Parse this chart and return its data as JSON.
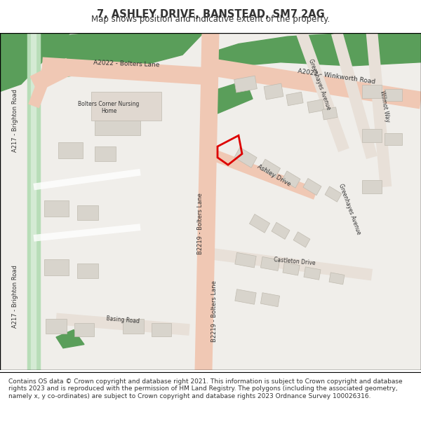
{
  "title": "7, ASHLEY DRIVE, BANSTEAD, SM7 2AG",
  "subtitle": "Map shows position and indicative extent of the property.",
  "footer": "Contains OS data © Crown copyright and database right 2021. This information is subject to Crown copyright and database rights 2023 and is reproduced with the permission of HM Land Registry. The polygons (including the associated geometry, namely x, y co-ordinates) are subject to Crown copyright and database rights 2023 Ordnance Survey 100026316.",
  "bg_color": "#f5f5f0",
  "map_bg": "#f0eeea",
  "road_salmon": "#f0c8b4",
  "road_green": "#b8ddb8",
  "green_area": "#5a9e5a",
  "building_color": "#d8d4cc",
  "building_edge": "#c0bbb0",
  "road_outline": "#e8e0d8",
  "property_red": "#dd0000",
  "text_color": "#333333",
  "label_color": "#555555"
}
